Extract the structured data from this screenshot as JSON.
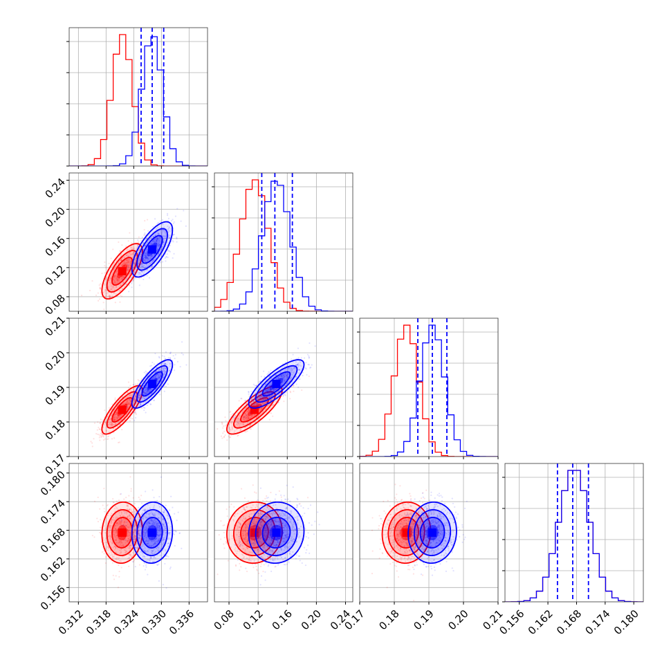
{
  "chart_data": {
    "type": "corner",
    "title": "",
    "parameters": [
      {
        "ticks": [
          0.312,
          0.318,
          0.324,
          0.33,
          0.336
        ],
        "tick_labels": [
          "0.312",
          "0.318",
          "0.324",
          "0.330",
          "0.336"
        ],
        "range": [
          0.31,
          0.34
        ]
      },
      {
        "ticks": [
          0.08,
          0.12,
          0.16,
          0.2,
          0.24
        ],
        "tick_labels": [
          "0.08",
          "0.12",
          "0.16",
          "0.20",
          "0.24"
        ],
        "range": [
          0.06,
          0.25
        ]
      },
      {
        "ticks": [
          0.17,
          0.18,
          0.19,
          0.2,
          0.21
        ],
        "tick_labels": [
          "0.17",
          "0.18",
          "0.19",
          "0.20",
          "0.21"
        ],
        "range": [
          0.17,
          0.21
        ]
      },
      {
        "ticks": [
          0.156,
          0.162,
          0.168,
          0.174,
          0.18
        ],
        "tick_labels": [
          "0.156",
          "0.162",
          "0.168",
          "0.174",
          "0.180"
        ],
        "range": [
          0.153,
          0.182
        ]
      }
    ],
    "series": [
      {
        "name": "red",
        "color": "#ff0000",
        "means": [
          0.3215,
          0.115,
          0.1835,
          0.1675
        ],
        "sigmas": [
          0.0022,
          0.019,
          0.0035,
          0.0032
        ],
        "correlations": [
          [
            0,
            1,
            0.7
          ],
          [
            0,
            2,
            0.8
          ],
          [
            0,
            3,
            0.05
          ],
          [
            1,
            2,
            0.8
          ],
          [
            1,
            3,
            0.05
          ],
          [
            2,
            3,
            0.05
          ]
        ]
      },
      {
        "name": "blue",
        "color": "#0000ff",
        "means": [
          0.328,
          0.145,
          0.191,
          0.1675
        ],
        "sigmas": [
          0.0022,
          0.019,
          0.0035,
          0.0032
        ],
        "correlations": [
          [
            0,
            1,
            0.7
          ],
          [
            0,
            2,
            0.8
          ],
          [
            0,
            3,
            0.05
          ],
          [
            1,
            2,
            0.8
          ],
          [
            1,
            3,
            0.05
          ],
          [
            2,
            3,
            0.05
          ]
        ]
      }
    ],
    "quantile_lines": {
      "series": "blue",
      "values": [
        [
          0.3256,
          0.328,
          0.3305
        ],
        [
          0.125,
          0.143,
          0.167
        ],
        [
          0.1868,
          0.191,
          0.1952
        ],
        [
          0.164,
          0.1672,
          0.1705
        ]
      ]
    },
    "contour_levels_sigma": [
      1,
      1.5,
      2
    ],
    "grid": true,
    "legend": "none"
  }
}
